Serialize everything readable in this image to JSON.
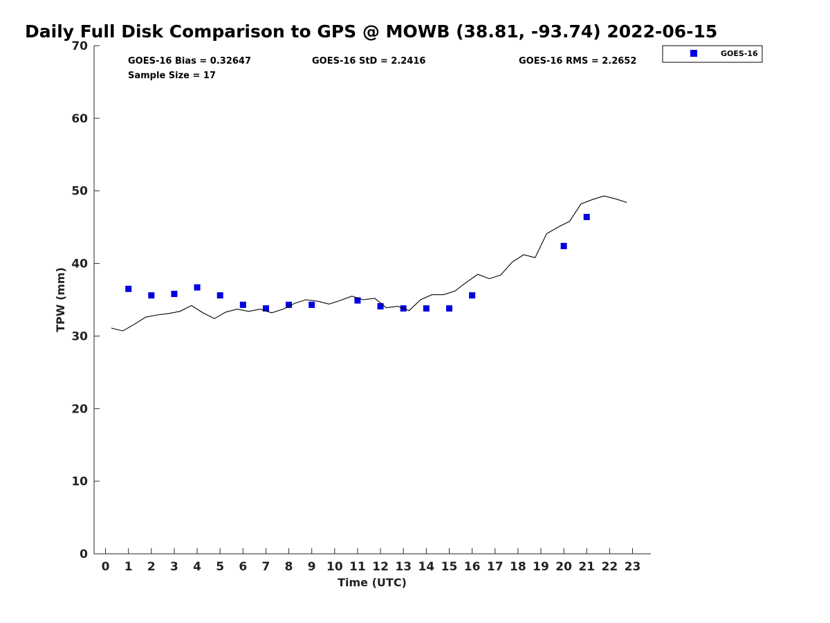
{
  "chart_data": {
    "type": "scatter",
    "title": "Daily Full Disk Comparison to GPS @ MOWB (38.81, -93.74) 2022-06-15",
    "xlabel": "Time (UTC)",
    "ylabel": "TPW (mm)",
    "xlim": [
      -0.5,
      23.8
    ],
    "ylim": [
      0,
      70
    ],
    "x_ticks": [
      0,
      1,
      2,
      3,
      4,
      5,
      6,
      7,
      8,
      9,
      10,
      11,
      12,
      13,
      14,
      15,
      16,
      17,
      18,
      19,
      20,
      21,
      22,
      23
    ],
    "y_ticks": [
      0,
      10,
      20,
      30,
      40,
      50,
      60,
      70
    ],
    "grid": false,
    "legend_position": "top-right outside plot",
    "stats": {
      "bias": "GOES-16 Bias = 0.32647",
      "std": "GOES-16 StD = 2.2416",
      "rms": "GOES-16 RMS = 2.2652",
      "sample_size": "Sample Size = 17"
    },
    "series": [
      {
        "name": "GOES-16",
        "kind": "scatter",
        "marker": "square",
        "color": "#0000e0",
        "x": [
          1,
          2,
          3,
          4,
          5,
          6,
          7,
          8,
          9,
          11,
          12,
          13,
          14,
          15,
          16,
          20,
          21
        ],
        "y": [
          36.5,
          35.6,
          35.8,
          36.7,
          35.6,
          34.3,
          33.8,
          34.3,
          34.3,
          34.9,
          34.1,
          33.8,
          33.8,
          33.8,
          35.6,
          42.4,
          46.4
        ]
      },
      {
        "kind": "line",
        "color": "#000000",
        "x": [
          0.25,
          0.75,
          1.25,
          1.75,
          2.25,
          2.75,
          3.25,
          3.75,
          4.25,
          4.75,
          5.25,
          5.75,
          6.25,
          6.75,
          7.25,
          7.75,
          8.25,
          8.75,
          9.25,
          9.75,
          10.25,
          10.75,
          11.25,
          11.75,
          12.25,
          12.75,
          13.25,
          13.75,
          14.25,
          14.75,
          15.25,
          15.75,
          16.25,
          16.75,
          17.25,
          17.75,
          18.25,
          18.75,
          19.25,
          19.75,
          20.25,
          20.75,
          21.25,
          21.75,
          22.25,
          22.75
        ],
        "y": [
          31.1,
          30.7,
          31.6,
          32.6,
          32.9,
          33.1,
          33.4,
          34.2,
          33.2,
          32.4,
          33.3,
          33.7,
          33.4,
          33.7,
          33.2,
          33.7,
          34.5,
          35.0,
          34.8,
          34.4,
          34.9,
          35.5,
          35.0,
          35.2,
          33.9,
          34.1,
          33.5,
          35.0,
          35.7,
          35.7,
          36.2,
          37.4,
          38.5,
          37.9,
          38.4,
          40.2,
          41.2,
          40.8,
          44.1,
          45.0,
          45.8,
          48.2,
          48.8,
          49.3,
          48.9,
          48.4
        ]
      }
    ]
  }
}
